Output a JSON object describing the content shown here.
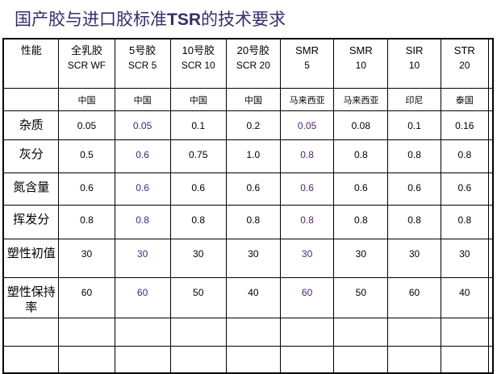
{
  "title": {
    "prefix": "国产胶与进口胶标准",
    "bold": "TSR",
    "suffix": "的技术要求"
  },
  "colors": {
    "title": "#3a2a6e",
    "highlight": "#4b1f7a"
  },
  "table": {
    "corner": "性能",
    "columns": [
      {
        "line1": "全乳胶",
        "line2": "SCR WF",
        "country": "中国"
      },
      {
        "line1": "5号胶",
        "line2": "SCR 5",
        "country": "中国"
      },
      {
        "line1": "10号胶",
        "line2": "SCR 10",
        "country": "中国"
      },
      {
        "line1": "20号胶",
        "line2": "SCR 20",
        "country": "中国"
      },
      {
        "line1": "SMR",
        "line2": "5",
        "country": "马来西亚"
      },
      {
        "line1": "SMR",
        "line2": "10",
        "country": "马来西亚"
      },
      {
        "line1": "SIR",
        "line2": "10",
        "country": "印尼"
      },
      {
        "line1": "STR",
        "line2": "20",
        "country": "泰国"
      }
    ],
    "rows": [
      {
        "label": "杂质",
        "values": [
          "0.05",
          "0.05",
          "0.1",
          "0.2",
          "0.05",
          "0.08",
          "0.1",
          "0.16"
        ]
      },
      {
        "label": "灰分",
        "values": [
          "0.5",
          "0.6",
          "0.75",
          "1.0",
          "0.8",
          "0.8",
          "0.8",
          "0.8"
        ]
      },
      {
        "label": "氮含量",
        "values": [
          "0.6",
          "0.6",
          "0.6",
          "0.6",
          "0.6",
          "0.6",
          "0.6",
          "0.6"
        ]
      },
      {
        "label": "挥发分",
        "values": [
          "0.8",
          "0.8",
          "0.8",
          "0.8",
          "0.8",
          "0.8",
          "0.8",
          "0.8"
        ]
      },
      {
        "label": "塑性初值",
        "values": [
          "30",
          "30",
          "30",
          "30",
          "30",
          "30",
          "30",
          "30"
        ]
      },
      {
        "label": "塑性保持率",
        "values": [
          "60",
          "60",
          "50",
          "40",
          "60",
          "50",
          "60",
          "40"
        ]
      }
    ]
  }
}
